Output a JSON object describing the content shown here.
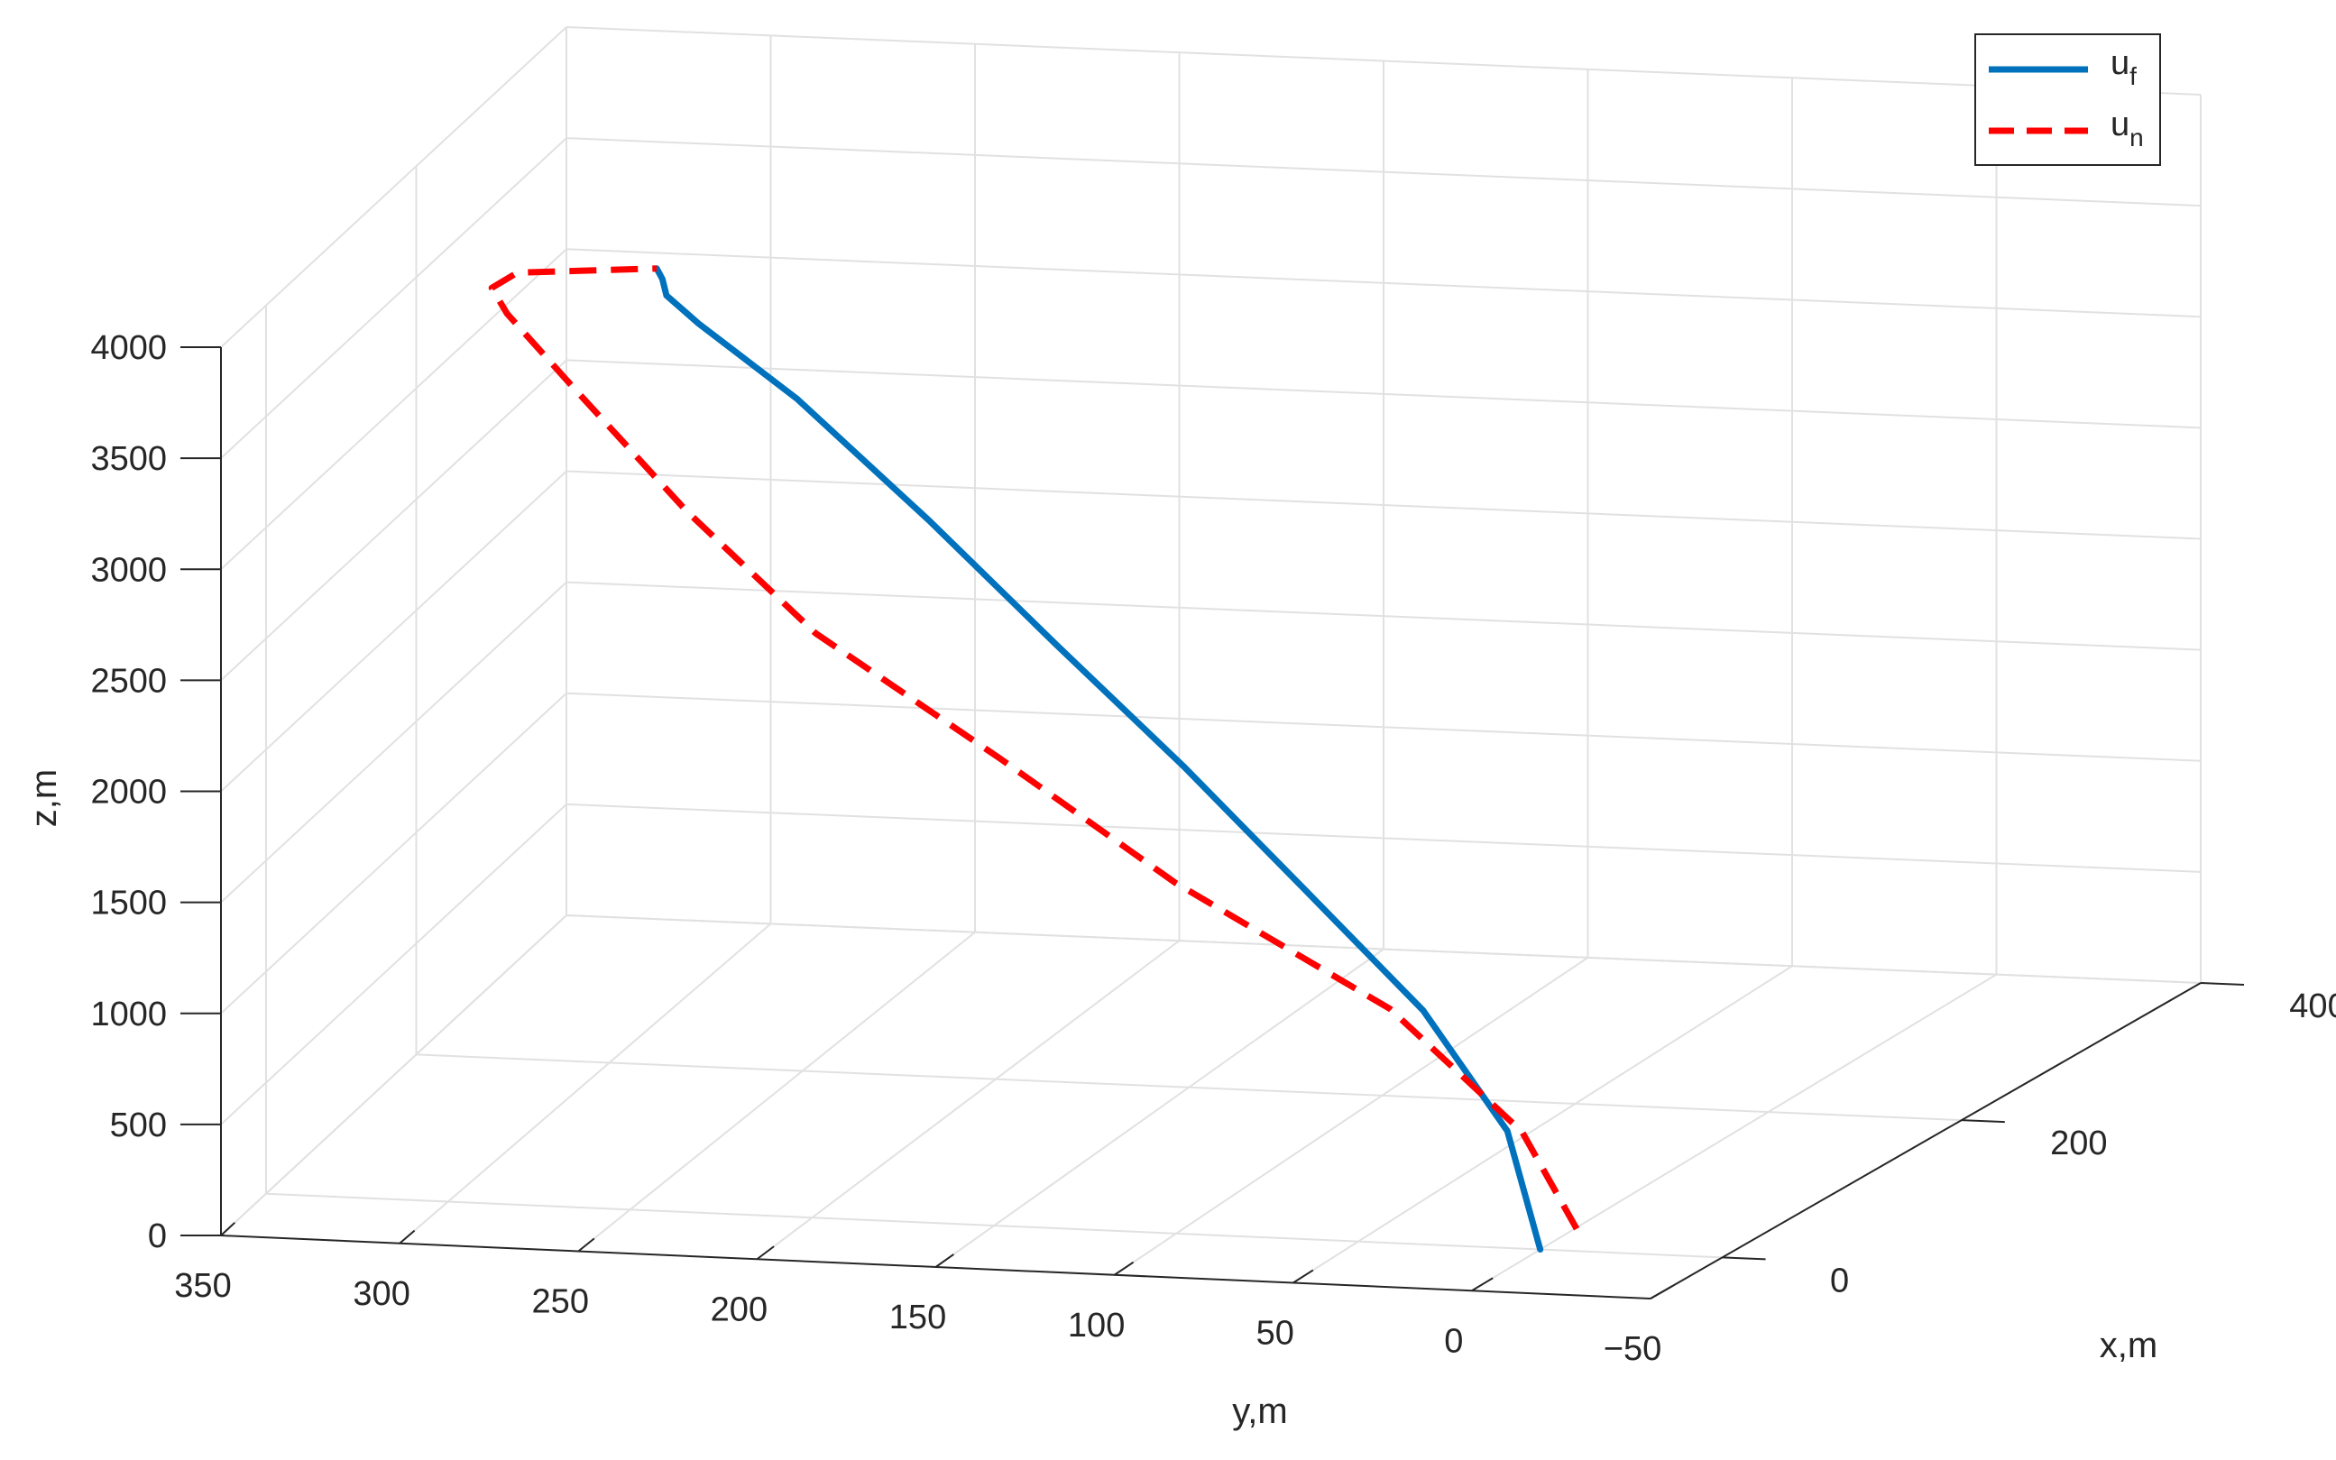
{
  "chart_data": {
    "type": "line",
    "projection": "3d",
    "title": "",
    "xlabel": "x,m",
    "ylabel": "y,m",
    "zlabel": "z,m",
    "x_ticks": [
      "0",
      "200",
      "400"
    ],
    "y_ticks": [
      "350",
      "300",
      "250",
      "200",
      "150",
      "100",
      "50",
      "0",
      "−50"
    ],
    "z_ticks": [
      "0",
      "500",
      "1000",
      "1500",
      "2000",
      "2500",
      "3000",
      "3500",
      "4000"
    ],
    "xlim": [
      -60,
      400
    ],
    "ylim": [
      -50,
      350
    ],
    "zlim": [
      0,
      4000
    ],
    "grid": true,
    "legend": "top-right",
    "series": [
      {
        "name": "u",
        "name_sub": "f",
        "color": "#0072BD",
        "style": "solid",
        "points": [
          {
            "x": 0,
            "y": 0,
            "z": 0
          },
          {
            "x": 8,
            "y": 11.5,
            "z": 500
          },
          {
            "x": 16,
            "y": 37,
            "z": 1000
          },
          {
            "x": 24,
            "y": 72,
            "z": 1500
          },
          {
            "x": 32,
            "y": 107,
            "z": 2000
          },
          {
            "x": 40,
            "y": 144,
            "z": 2500
          },
          {
            "x": 48,
            "y": 180,
            "z": 3000
          },
          {
            "x": 56,
            "y": 218,
            "z": 3500
          },
          {
            "x": 62,
            "y": 246,
            "z": 3800
          },
          {
            "x": 68,
            "y": 256,
            "z": 3900
          },
          {
            "x": 72,
            "y": 258,
            "z": 3960
          },
          {
            "x": 74,
            "y": 260,
            "z": 4000
          }
        ]
      },
      {
        "name": "u",
        "name_sub": "n",
        "color": "#FF0000",
        "style": "dashed",
        "points": [
          {
            "x": 0,
            "y": -10,
            "z": 100
          },
          {
            "x": 8,
            "y": 7.5,
            "z": 500
          },
          {
            "x": 16,
            "y": 46,
            "z": 1000
          },
          {
            "x": 24,
            "y": 107,
            "z": 1500
          },
          {
            "x": 32,
            "y": 157,
            "z": 2000
          },
          {
            "x": 40,
            "y": 209,
            "z": 2500
          },
          {
            "x": 48,
            "y": 246,
            "z": 3000
          },
          {
            "x": 56,
            "y": 278,
            "z": 3500
          },
          {
            "x": 64,
            "y": 298,
            "z": 3800
          },
          {
            "x": 68,
            "y": 303,
            "z": 3900
          },
          {
            "x": 72,
            "y": 297,
            "z": 3960
          },
          {
            "x": 74,
            "y": 260,
            "z": 4000
          }
        ]
      }
    ]
  }
}
